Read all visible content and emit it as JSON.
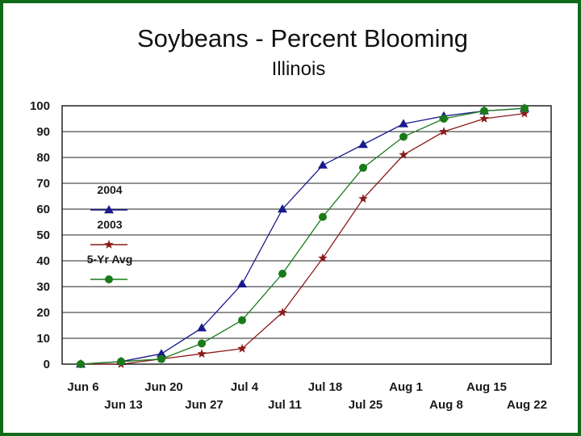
{
  "chart_data": {
    "type": "line",
    "title": "Soybeans - Percent Blooming",
    "subtitle": "Illinois",
    "xlabel": "",
    "ylabel": "",
    "ylim": [
      0,
      100
    ],
    "yticks": [
      0,
      10,
      20,
      30,
      40,
      50,
      60,
      70,
      80,
      90,
      100
    ],
    "grid": "horizontal",
    "legend_position": "left",
    "categories": [
      "Jun 6",
      "Jun 13",
      "Jun 20",
      "Jun 27",
      "Jul 4",
      "Jul 11",
      "Jul 18",
      "Jul 25",
      "Aug 1",
      "Aug 8",
      "Aug 15",
      "Aug 22"
    ],
    "series": [
      {
        "name": "2004",
        "color": "#1a1a8c",
        "marker": "triangle",
        "values": [
          0,
          1,
          4,
          14,
          31,
          60,
          77,
          85,
          93,
          96,
          98,
          99
        ]
      },
      {
        "name": "2003",
        "color": "#8c1a1a",
        "marker": "star",
        "values": [
          0,
          0,
          2,
          4,
          6,
          20,
          41,
          64,
          81,
          90,
          95,
          97
        ]
      },
      {
        "name": "5-Yr Avg",
        "color": "#1a7a1a",
        "marker": "circle",
        "values": [
          0,
          1,
          2,
          8,
          17,
          35,
          57,
          76,
          88,
          95,
          98,
          99
        ]
      }
    ]
  }
}
